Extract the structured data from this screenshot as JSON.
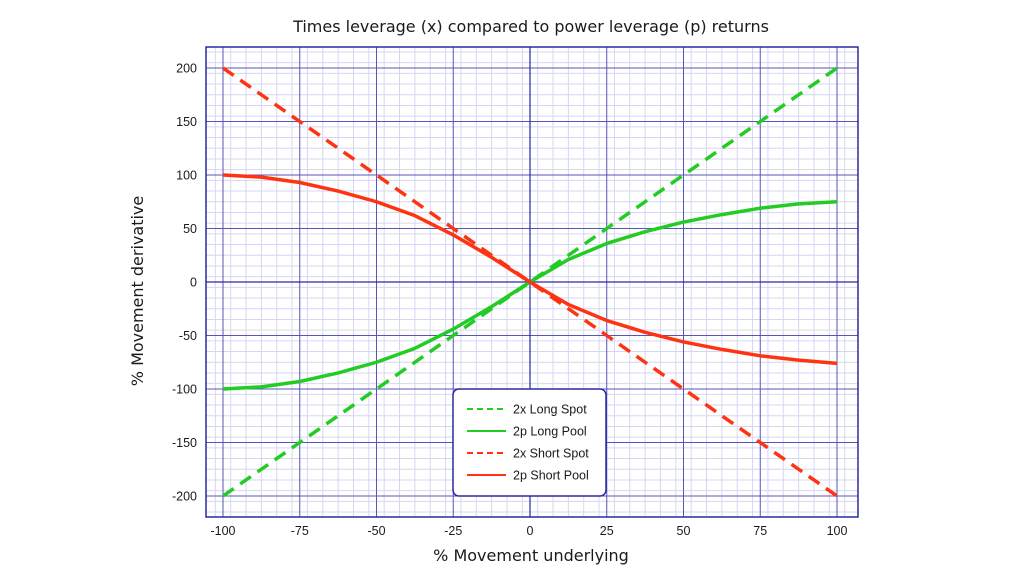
{
  "chart_data": {
    "type": "line",
    "title": "Times leverage (x) compared to power leverage (p) returns",
    "xlabel": "% Movement underlying",
    "ylabel": "% Movement derivative",
    "xlim": [
      -100,
      100
    ],
    "ylim": [
      -200,
      200
    ],
    "x_ticks": [
      -100,
      -75,
      -50,
      -25,
      0,
      25,
      50,
      75,
      100
    ],
    "y_ticks": [
      200,
      150,
      100,
      50,
      0,
      -50,
      -100,
      -150,
      -200
    ],
    "x_tick_labels": [
      "-100",
      "-75",
      "-50",
      "-25",
      "0",
      "25",
      "50",
      "75",
      "100"
    ],
    "y_tick_labels": [
      "200",
      "150",
      "100",
      "50",
      "0",
      "-50",
      "-100",
      "-150",
      "-200"
    ],
    "grid": true,
    "legend_position": "bottom-center",
    "x": [
      -100,
      -87.5,
      -75,
      -62.5,
      -50,
      -37.5,
      -25,
      -12.5,
      0,
      12.5,
      25,
      37.5,
      50,
      62.5,
      75,
      87.5,
      100
    ],
    "series": [
      {
        "name": "2x Long Spot",
        "style": "dashed",
        "color": "#22cc22",
        "values": [
          -200,
          -175,
          -150,
          -125,
          -100,
          -75,
          -50,
          -25,
          0,
          25,
          50,
          75,
          100,
          125,
          150,
          175,
          200
        ]
      },
      {
        "name": "2p Long Pool",
        "style": "solid",
        "color": "#22cc22",
        "values": [
          -100,
          -98,
          -93,
          -85,
          -75,
          -62,
          -44,
          -23,
          0,
          21,
          36,
          47,
          56,
          63,
          69,
          73,
          75
        ]
      },
      {
        "name": "2x Short Spot",
        "style": "dashed",
        "color": "#ff3311",
        "values": [
          200,
          175,
          150,
          125,
          100,
          75,
          50,
          25,
          0,
          -25,
          -50,
          -75,
          -100,
          -125,
          -150,
          -175,
          -200
        ]
      },
      {
        "name": "2p Short Pool",
        "style": "solid",
        "color": "#ff3311",
        "values": [
          100,
          98,
          93,
          85,
          75,
          62,
          44,
          23,
          0,
          -21,
          -36,
          -47,
          -56,
          -63,
          -69,
          -73,
          -76
        ]
      }
    ],
    "colors": {
      "plot_border": "#2a2aa0",
      "major_grid": "#5555bb",
      "minor_grid": "#d6d6f2",
      "zero_line": "#2a2aa0",
      "legend_border": "#2a2aa0"
    }
  }
}
